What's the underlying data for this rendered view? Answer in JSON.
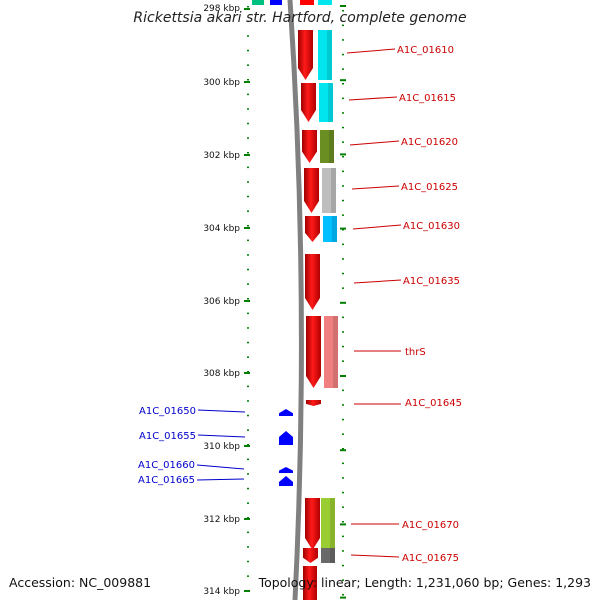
{
  "title": "Rickettsia akari str. Hartford, complete genome",
  "accession_text": "Accession: NC_009881",
  "summary_text": "Topology: linear; Length: 1,231,060 bp; Genes: 1,293",
  "ruler": {
    "tick_labels": [
      "298 kbp",
      "300 kbp",
      "302 kbp",
      "304 kbp",
      "306 kbp",
      "308 kbp",
      "310 kbp",
      "312 kbp",
      "314 kbp"
    ]
  },
  "genes_right": [
    {
      "label": "A1C_01610",
      "color": "#ff0000",
      "cog_color": "#00e5ee"
    },
    {
      "label": "A1C_01615",
      "color": "#ff0000",
      "cog_color": "#00e5ee"
    },
    {
      "label": "A1C_01620",
      "color": "#ff0000",
      "cog_color": "#6b8e23"
    },
    {
      "label": "A1C_01625",
      "color": "#ff0000",
      "cog_color": "#bebebe"
    },
    {
      "label": "A1C_01630",
      "color": "#ff0000",
      "cog_color": "#00bfff"
    },
    {
      "label": "A1C_01635",
      "color": "#ff0000",
      "cog_color": ""
    },
    {
      "label": "thrS",
      "color": "#ff0000",
      "cog_color": "#f08080"
    },
    {
      "label": "A1C_01645",
      "color": "#ff0000",
      "cog_color": ""
    },
    {
      "label": "A1C_01670",
      "color": "#ff0000",
      "cog_color": "#9acd32"
    },
    {
      "label": "A1C_01675",
      "color": "#ff0000",
      "cog_color": "#696969"
    }
  ],
  "genes_left": [
    {
      "label": "A1C_01650",
      "color": "#0000ff"
    },
    {
      "label": "A1C_01655",
      "color": "#0000ff"
    },
    {
      "label": "A1C_01660",
      "color": "#0000ff"
    },
    {
      "label": "A1C_01665",
      "color": "#0000ff"
    }
  ],
  "colors": {
    "forward_label": "#cc0000",
    "reverse_label": "#0000cc",
    "backbone": "#808080",
    "tick": "#008000"
  }
}
